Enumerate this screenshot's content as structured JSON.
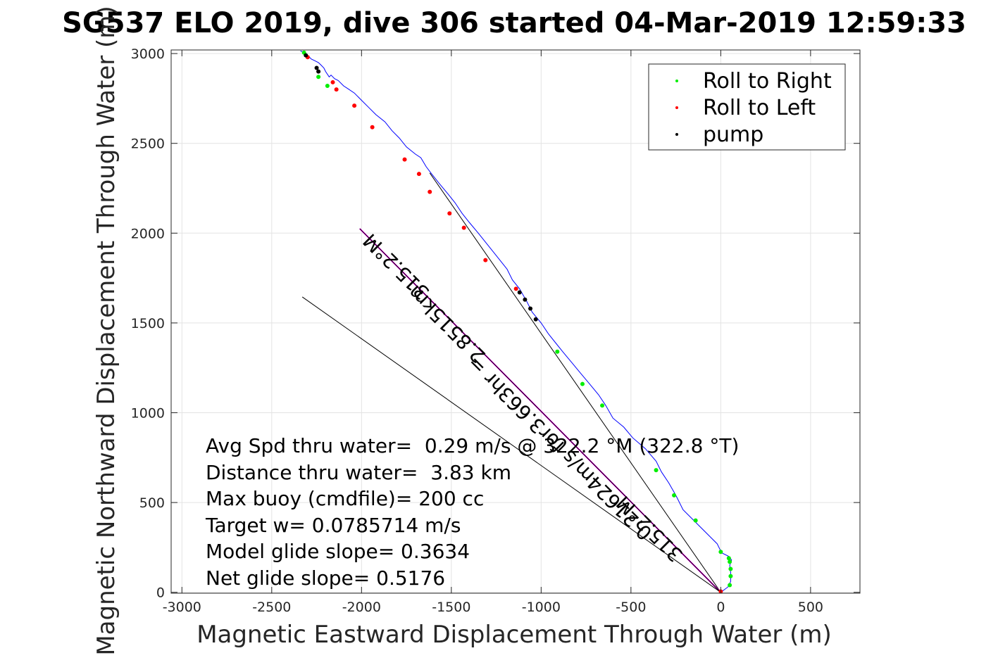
{
  "chart_data": {
    "type": "line",
    "title": "SG537 ELO 2019, dive 306 started 04-Mar-2019 12:59:33",
    "xlabel": "Magnetic Eastward Displacement Through Water (m)",
    "ylabel": "Magnetic Northward Displacement Through Water (m)",
    "xlim": [
      -3060,
      775
    ],
    "ylim": [
      -5,
      3020
    ],
    "xticks": [
      -3000,
      -2500,
      -2000,
      -1500,
      -1000,
      -500,
      0,
      500
    ],
    "yticks": [
      0,
      500,
      1000,
      1500,
      2000,
      2500,
      3000
    ],
    "xtick_labels": [
      "-3000",
      "-2500",
      "-2000",
      "-1500",
      "-1000",
      "-500",
      "0",
      "500"
    ],
    "ytick_labels": [
      "0",
      "500",
      "1000",
      "1500",
      "2000",
      "2500",
      "3000"
    ],
    "grid": true,
    "legend_position": "top-right",
    "legend": [
      {
        "label": "Roll to Right",
        "color": "#00ee00"
      },
      {
        "label": "Roll to Left",
        "color": "#ff0000"
      },
      {
        "label": "pump",
        "color": "#000000"
      }
    ],
    "track": {
      "color": "#0000ff",
      "x": [
        0,
        40,
        55,
        55,
        50,
        60,
        45,
        5,
        -20,
        -80,
        -150,
        -210,
        -250,
        -290,
        -330,
        -360,
        -420,
        -490,
        -540,
        -600,
        -640,
        -680,
        -730,
        -780,
        -830,
        -880,
        -920,
        -960,
        -1000,
        -1050,
        -1080,
        -1120,
        -1160,
        -1190,
        -1230,
        -1270,
        -1310,
        -1350,
        -1400,
        -1440,
        -1480,
        -1520,
        -1570,
        -1610,
        -1640,
        -1670,
        -1700,
        -1750,
        -1790,
        -1830,
        -1870,
        -1920,
        -1960,
        -2000,
        -2040,
        -2070,
        -2100,
        -2130,
        -2150,
        -2170,
        -2180,
        -2200,
        -2210,
        -2230,
        -2240,
        -2260,
        -2280,
        -2290,
        -2300,
        -2310,
        -2320,
        -2330,
        -2340
      ],
      "y": [
        0,
        30,
        60,
        110,
        150,
        180,
        200,
        220,
        270,
        330,
        400,
        460,
        540,
        610,
        670,
        730,
        800,
        860,
        920,
        970,
        1040,
        1100,
        1160,
        1220,
        1280,
        1340,
        1390,
        1440,
        1500,
        1560,
        1620,
        1690,
        1740,
        1800,
        1850,
        1900,
        1950,
        2000,
        2060,
        2110,
        2170,
        2220,
        2280,
        2330,
        2370,
        2420,
        2440,
        2480,
        2530,
        2570,
        2620,
        2660,
        2700,
        2740,
        2780,
        2800,
        2820,
        2850,
        2860,
        2880,
        2870,
        2900,
        2920,
        2940,
        2950,
        2960,
        2970,
        2980,
        2990,
        3000,
        3005,
        3010,
        3015
      ]
    },
    "roll_right": {
      "x": [
        50,
        55,
        55,
        50,
        45,
        0,
        -140,
        -260,
        -360,
        -660,
        -770,
        -910,
        -2190,
        -2240,
        -2320
      ],
      "y": [
        40,
        90,
        130,
        170,
        190,
        225,
        400,
        540,
        680,
        1040,
        1160,
        1340,
        2820,
        2870,
        3005
      ]
    },
    "roll_left": {
      "x": [
        0,
        -1140,
        -1310,
        -1430,
        -1510,
        -1620,
        -1680,
        -1760,
        -1940,
        -2040,
        -2140,
        -2160,
        -2300
      ],
      "y": [
        5,
        1690,
        1850,
        2030,
        2110,
        2230,
        2330,
        2410,
        2590,
        2710,
        2800,
        2840,
        2980
      ]
    },
    "pump": {
      "x": [
        -1030,
        -1060,
        -1090,
        -1120,
        -2240,
        -2250,
        -2310
      ],
      "y": [
        1520,
        1580,
        1630,
        1670,
        2900,
        2920,
        2990
      ]
    },
    "reference_lines": [
      {
        "name": "",
        "color": "#000000",
        "x": [
          0,
          -1620
        ],
        "y": [
          0,
          2335
        ]
      },
      {
        "name": "",
        "color": "#ff00ff",
        "x": [
          0,
          -2010
        ],
        "y": [
          0,
          2025
        ]
      },
      {
        "name": "",
        "color": "#000000",
        "x": [
          0,
          -2010
        ],
        "y": [
          0,
          2025
        ]
      },
      {
        "name": "",
        "color": "#000000",
        "x": [
          0,
          -2330
        ],
        "y": [
          0,
          1645
        ]
      }
    ],
    "annotations": [
      {
        "text": "315.2°M",
        "x": -1780,
        "y": 1840,
        "angle": 225
      },
      {
        "text": "2.8515km",
        "x": -1500,
        "y": 1520,
        "angle": 225
      },
      {
        "text": "0.21624m/s for3.663hr =",
        "x": -870,
        "y": 830,
        "angle": 225
      },
      {
        "text": "315.2°M",
        "x": -370,
        "y": 380,
        "angle": 225
      }
    ],
    "stats": [
      "Avg Spd thru water=  0.29 m/s @ 322.2 °M (322.8 °T)",
      "Distance thru water=  3.83 km",
      "Max buoy (cmdfile)= 200 cc",
      "Target w= 0.0785714 m/s",
      "Model glide slope= 0.3634",
      "Net glide slope= 0.5176"
    ]
  }
}
